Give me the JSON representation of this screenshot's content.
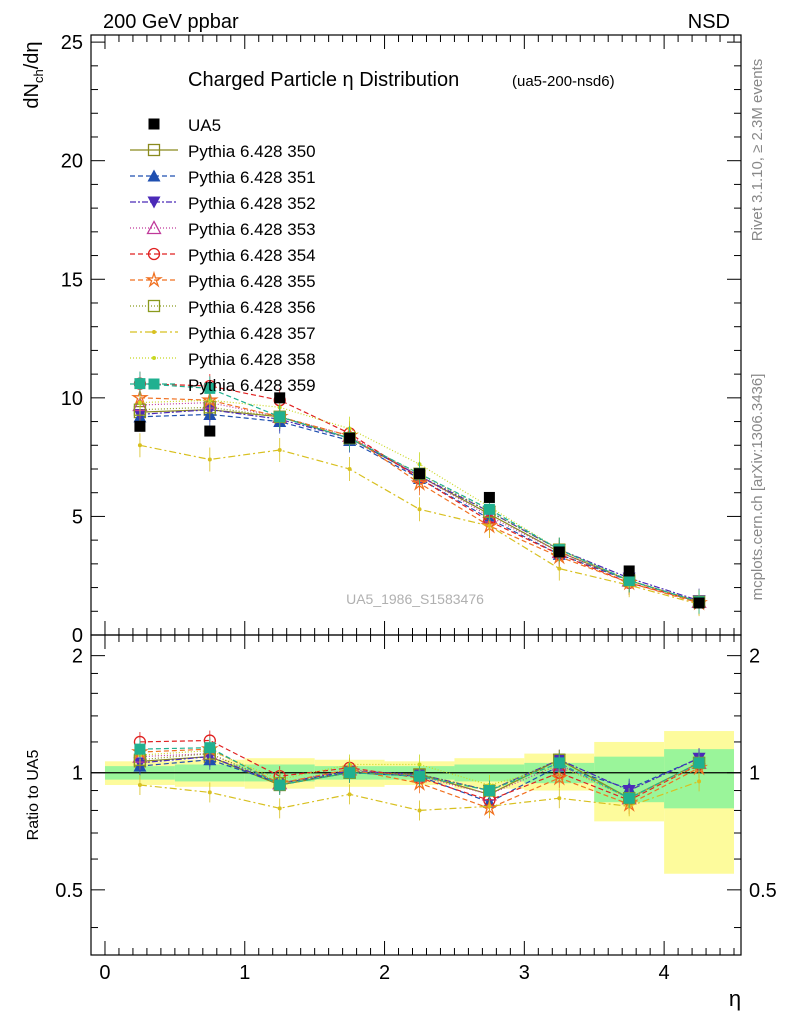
{
  "header": {
    "left": "200 GeV ppbar",
    "right": "NSD"
  },
  "side_text": {
    "rivet": "Rivet 3.1.10, ≥ 2.3M events",
    "mcplots": "mcplots.cern.ch [arXiv:1306.3436]"
  },
  "watermark": "UA5_1986_S1583476",
  "chart_data": [
    {
      "panel": "main",
      "type": "line",
      "title_main": "Charged Particle η Distribution",
      "title_suffix": "(ua5-200-nsd6)",
      "ylabel": "dN_ch/dη",
      "xlim": [
        -0.1,
        4.55
      ],
      "ylim": [
        0,
        25.3
      ],
      "y_ticks": [
        "0",
        "5",
        "10",
        "15",
        "20",
        "25"
      ],
      "x": [
        0.25,
        0.75,
        1.25,
        1.75,
        2.25,
        2.75,
        3.25,
        3.75,
        4.25
      ],
      "data": {
        "name": "UA5",
        "values": [
          8.8,
          8.6,
          10.0,
          8.3,
          6.8,
          5.8,
          3.5,
          2.7,
          1.35
        ]
      },
      "series": [
        {
          "name": "Pythia 6.428 350",
          "color": "#8a8a1e",
          "marker": "square-open",
          "dash": "",
          "values": [
            9.4,
            9.5,
            9.2,
            8.3,
            6.7,
            5.1,
            3.5,
            2.3,
            1.4
          ]
        },
        {
          "name": "Pythia 6.428 351",
          "color": "#1f4fb0",
          "marker": "triangle-up",
          "dash": "5,3",
          "values": [
            9.2,
            9.3,
            9.0,
            8.2,
            6.6,
            4.9,
            3.4,
            2.3,
            1.4
          ]
        },
        {
          "name": "Pythia 6.428 352",
          "color": "#4b2ab8",
          "marker": "triangle-down",
          "dash": "6,2,2,2",
          "values": [
            9.3,
            9.5,
            9.1,
            8.3,
            6.7,
            5.2,
            3.6,
            2.4,
            1.45
          ]
        },
        {
          "name": "Pythia 6.428 353",
          "color": "#c0399a",
          "marker": "triangle-up-open",
          "dash": "1,2",
          "values": [
            9.7,
            9.8,
            9.2,
            8.4,
            6.7,
            5.0,
            3.5,
            2.3,
            1.4
          ]
        },
        {
          "name": "Pythia 6.428 354",
          "color": "#e02020",
          "marker": "circle-open",
          "dash": "5,3",
          "values": [
            10.6,
            10.5,
            9.9,
            8.5,
            6.6,
            4.8,
            3.4,
            2.2,
            1.4
          ]
        },
        {
          "name": "Pythia 6.428 355",
          "color": "#f07020",
          "marker": "star-open",
          "dash": "5,3",
          "values": [
            10.0,
            9.9,
            9.2,
            8.4,
            6.4,
            4.6,
            3.3,
            2.2,
            1.35
          ]
        },
        {
          "name": "Pythia 6.428 356",
          "color": "#8a9a1e",
          "marker": "square-open",
          "dash": "1,2",
          "values": [
            9.5,
            9.6,
            9.2,
            8.3,
            6.8,
            5.2,
            3.6,
            2.3,
            1.4
          ]
        },
        {
          "name": "Pythia 6.428 357",
          "color": "#d8c020",
          "marker": "dot",
          "dash": "7,3,2,3",
          "values": [
            8.0,
            7.4,
            7.8,
            7.0,
            5.3,
            4.6,
            2.8,
            2.1,
            1.3
          ]
        },
        {
          "name": "Pythia 6.428 358",
          "color": "#c8d820",
          "marker": "dot",
          "dash": "1,2",
          "values": [
            9.8,
            9.9,
            9.6,
            8.7,
            7.2,
            5.4,
            3.6,
            2.3,
            1.4
          ]
        },
        {
          "name": "Pythia 6.428 359",
          "color": "#20b090",
          "marker": "square",
          "dash": "5,3",
          "values": [
            10.6,
            10.4,
            9.2,
            8.3,
            6.8,
            5.3,
            3.6,
            2.3,
            1.4
          ]
        }
      ]
    },
    {
      "panel": "ratio",
      "type": "line",
      "ylabel": "Ratio to UA5",
      "xlabel": "η",
      "xlim": [
        -0.1,
        4.55
      ],
      "ylim": [
        0.34,
        2.26
      ],
      "x_ticks": [
        "0",
        "1",
        "2",
        "3",
        "4"
      ],
      "y_ticks": [
        "0.5",
        "1",
        "2"
      ],
      "bands": {
        "x_edges": [
          0,
          0.5,
          1.0,
          1.5,
          2.0,
          2.5,
          3.0,
          3.5,
          4.0,
          4.5
        ],
        "yellow_lo": [
          0.93,
          0.92,
          0.91,
          0.92,
          0.93,
          0.91,
          0.9,
          0.75,
          0.55
        ],
        "yellow_hi": [
          1.07,
          1.08,
          1.09,
          1.08,
          1.07,
          1.09,
          1.12,
          1.2,
          1.28
        ],
        "green_lo": [
          0.96,
          0.95,
          0.95,
          0.96,
          0.96,
          0.95,
          0.94,
          0.84,
          0.81
        ],
        "green_hi": [
          1.04,
          1.05,
          1.05,
          1.04,
          1.04,
          1.05,
          1.06,
          1.1,
          1.15
        ]
      },
      "series": [
        {
          "name": "Pythia 6.428 350",
          "values": [
            1.07,
            1.1,
            0.93,
            1.0,
            0.99,
            0.88,
            1.08,
            0.86,
            1.06
          ]
        },
        {
          "name": "Pythia 6.428 351",
          "values": [
            1.04,
            1.08,
            0.94,
            1.0,
            0.98,
            0.84,
            1.04,
            0.91,
            1.09
          ]
        },
        {
          "name": "Pythia 6.428 352",
          "values": [
            1.06,
            1.1,
            0.94,
            1.01,
            0.99,
            0.9,
            1.08,
            0.9,
            1.09
          ]
        },
        {
          "name": "Pythia 6.428 353",
          "values": [
            1.1,
            1.12,
            0.94,
            1.02,
            0.98,
            0.88,
            1.05,
            0.86,
            1.06
          ]
        },
        {
          "name": "Pythia 6.428 354",
          "values": [
            1.2,
            1.21,
            0.98,
            1.03,
            0.97,
            0.85,
            1.0,
            0.85,
            1.05
          ]
        },
        {
          "name": "Pythia 6.428 355",
          "values": [
            1.13,
            1.15,
            0.94,
            1.02,
            0.94,
            0.81,
            0.97,
            0.83,
            1.03
          ]
        },
        {
          "name": "Pythia 6.428 356",
          "values": [
            1.08,
            1.12,
            0.94,
            1.0,
            0.99,
            0.9,
            1.08,
            0.86,
            1.06
          ]
        },
        {
          "name": "Pythia 6.428 357",
          "values": [
            0.93,
            0.89,
            0.81,
            0.88,
            0.8,
            0.82,
            0.86,
            0.82,
            0.95
          ]
        },
        {
          "name": "Pythia 6.428 358",
          "values": [
            1.11,
            1.14,
            0.96,
            1.05,
            1.05,
            0.93,
            1.04,
            0.86,
            1.05
          ]
        },
        {
          "name": "Pythia 6.428 359",
          "values": [
            1.15,
            1.16,
            0.93,
            1.0,
            0.98,
            0.9,
            1.06,
            0.86,
            1.06
          ]
        }
      ]
    }
  ]
}
